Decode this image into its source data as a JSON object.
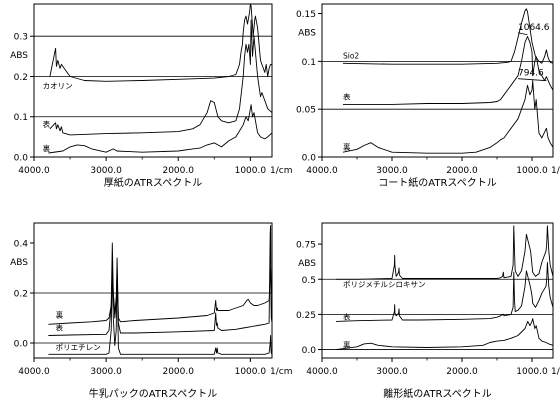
{
  "chart_data": [
    {
      "type": "line",
      "title": "厚紙のATRスペクトル",
      "ylabel": "ABS",
      "xlabel": "",
      "x_unit": "1/cm",
      "x_reversed": true,
      "xlim": [
        4000,
        700
      ],
      "ylim": [
        0,
        0.38
      ],
      "x_ticks": [
        4000,
        3000,
        2000,
        1000
      ],
      "x_tick_labels": [
        "4000.0",
        "3000.0",
        "2000.0",
        "1000.0"
      ],
      "y_ticks": [
        0,
        0.1,
        0.2,
        0.3
      ],
      "y_tick_labels": [
        "0.0",
        "0.1",
        "0.2",
        "0.3"
      ],
      "y_gridlines": [
        0,
        0.1,
        0.2,
        0.3
      ],
      "grid": "horizontal",
      "annotations": [
        {
          "text": "カオリン",
          "x": 3880,
          "y": 0.165
        },
        {
          "text": "表",
          "x": 3880,
          "y": 0.07
        },
        {
          "text": "裏",
          "x": 3880,
          "y": 0.01
        }
      ],
      "series": [
        {
          "label": "カオリン",
          "x": [
            3780,
            3700,
            3690,
            3670,
            3640,
            3620,
            3600,
            3500,
            3300,
            3000,
            2500,
            2000,
            1500,
            1300,
            1200,
            1150,
            1130,
            1110,
            1100,
            1080,
            1060,
            1040,
            1030,
            1010,
            1000,
            990,
            960,
            940,
            930,
            910,
            900,
            860,
            840,
            800,
            780,
            760,
            740,
            720,
            700
          ],
          "y": [
            0.2,
            0.27,
            0.225,
            0.24,
            0.22,
            0.23,
            0.225,
            0.2,
            0.19,
            0.188,
            0.19,
            0.193,
            0.196,
            0.2,
            0.205,
            0.23,
            0.26,
            0.28,
            0.31,
            0.34,
            0.35,
            0.33,
            0.34,
            0.36,
            0.38,
            0.375,
            0.3,
            0.34,
            0.35,
            0.33,
            0.32,
            0.24,
            0.23,
            0.21,
            0.23,
            0.2,
            0.22,
            0.23,
            0.23
          ]
        },
        {
          "label": "表",
          "x": [
            3780,
            3700,
            3690,
            3670,
            3640,
            3620,
            3600,
            3500,
            3000,
            2500,
            2000,
            1800,
            1700,
            1600,
            1550,
            1500,
            1450,
            1400,
            1300,
            1200,
            1150,
            1100,
            1080,
            1060,
            1040,
            1020,
            1000,
            990,
            970,
            950,
            900,
            860,
            840,
            800,
            760,
            700
          ],
          "y": [
            0.07,
            0.085,
            0.07,
            0.08,
            0.065,
            0.075,
            0.06,
            0.055,
            0.058,
            0.06,
            0.063,
            0.07,
            0.08,
            0.11,
            0.14,
            0.135,
            0.1,
            0.09,
            0.085,
            0.09,
            0.12,
            0.2,
            0.25,
            0.28,
            0.26,
            0.28,
            0.23,
            0.34,
            0.25,
            0.3,
            0.2,
            0.15,
            0.16,
            0.14,
            0.12,
            0.11
          ]
        },
        {
          "label": "裏",
          "x": [
            3800,
            3600,
            3500,
            3400,
            3300,
            3200,
            3000,
            2900,
            2850,
            2500,
            2000,
            1800,
            1700,
            1600,
            1500,
            1450,
            1400,
            1300,
            1200,
            1100,
            1060,
            1030,
            1000,
            990,
            970,
            950,
            900,
            860,
            800,
            760,
            700
          ],
          "y": [
            0.01,
            0.015,
            0.025,
            0.03,
            0.028,
            0.02,
            0.012,
            0.02,
            0.015,
            0.012,
            0.015,
            0.02,
            0.022,
            0.03,
            0.035,
            0.03,
            0.025,
            0.04,
            0.05,
            0.08,
            0.1,
            0.09,
            0.12,
            0.13,
            0.1,
            0.11,
            0.06,
            0.05,
            0.045,
            0.05,
            0.06
          ]
        }
      ]
    },
    {
      "type": "line",
      "title": "コート紙のATRスペクトル",
      "ylabel": "ABS",
      "xlabel": "",
      "x_unit": "1/cm",
      "x_reversed": true,
      "xlim": [
        4000,
        700
      ],
      "ylim": [
        0,
        0.16
      ],
      "x_ticks": [
        4000,
        3000,
        2000,
        1000
      ],
      "x_tick_labels": [
        "4000.0",
        "3000.0",
        "2000.0",
        "1000.0"
      ],
      "y_ticks": [
        0,
        0.05,
        0.1,
        0.15
      ],
      "y_tick_labels": [
        "0.0",
        "0.05",
        "0.1",
        "0.15"
      ],
      "y_gridlines": [
        0,
        0.05,
        0.1
      ],
      "grid": "horizontal",
      "annotations": [
        {
          "text": "Sio2",
          "x": 3700,
          "y": 0.101
        },
        {
          "text": "表",
          "x": 3700,
          "y": 0.058
        },
        {
          "text": "裏",
          "x": 3700,
          "y": 0.006
        },
        {
          "text": "1064.6",
          "x": 1064.6,
          "y": 0.132
        },
        {
          "text": "794.6",
          "x": 794.6,
          "y": 0.084
        }
      ],
      "series": [
        {
          "label": "Sio2",
          "x": [
            3700,
            3000,
            2500,
            2000,
            1500,
            1350,
            1300,
            1250,
            1200,
            1150,
            1100,
            1080,
            1064.6,
            1040,
            1000,
            950,
            900,
            860,
            820,
            794.6,
            770,
            740,
            700
          ],
          "y": [
            0.098,
            0.097,
            0.097,
            0.097,
            0.098,
            0.099,
            0.1,
            0.11,
            0.125,
            0.14,
            0.153,
            0.155,
            0.152,
            0.14,
            0.12,
            0.105,
            0.1,
            0.098,
            0.105,
            0.112,
            0.104,
            0.099,
            0.098
          ]
        },
        {
          "label": "表",
          "x": [
            3700,
            3000,
            2500,
            2000,
            1600,
            1500,
            1450,
            1400,
            1300,
            1200,
            1150,
            1100,
            1064.6,
            1030,
            1000,
            990,
            960,
            940,
            900,
            860,
            820,
            794.6,
            770,
            740,
            700
          ],
          "y": [
            0.055,
            0.055,
            0.056,
            0.056,
            0.057,
            0.058,
            0.06,
            0.065,
            0.075,
            0.085,
            0.1,
            0.12,
            0.126,
            0.12,
            0.11,
            0.085,
            0.1,
            0.105,
            0.09,
            0.085,
            0.08,
            0.084,
            0.08,
            0.075,
            0.07
          ]
        },
        {
          "label": "裏",
          "x": [
            3700,
            3500,
            3400,
            3300,
            3200,
            3000,
            2500,
            2000,
            1800,
            1600,
            1500,
            1450,
            1400,
            1300,
            1200,
            1100,
            1064.6,
            1030,
            1000,
            990,
            960,
            940,
            900,
            860,
            794.6,
            770,
            740,
            700
          ],
          "y": [
            0.005,
            0.008,
            0.012,
            0.015,
            0.01,
            0.005,
            0.004,
            0.004,
            0.005,
            0.01,
            0.015,
            0.018,
            0.02,
            0.03,
            0.04,
            0.06,
            0.075,
            0.065,
            0.07,
            0.08,
            0.05,
            0.06,
            0.025,
            0.02,
            0.03,
            0.02,
            0.015,
            0.01
          ]
        }
      ]
    },
    {
      "type": "line",
      "title": "牛乳パックのATRスペクトル",
      "ylabel": "ABS",
      "xlabel": "",
      "x_unit": "1/cm",
      "x_reversed": true,
      "xlim": [
        4000,
        700
      ],
      "ylim": [
        -0.06,
        0.48
      ],
      "x_ticks": [
        4000,
        3000,
        2000,
        1000
      ],
      "x_tick_labels": [
        "4000.0",
        "3000.0",
        "2000.0",
        "1000.0"
      ],
      "y_ticks": [
        0,
        0.2,
        0.4
      ],
      "y_tick_labels": [
        "0.0",
        "0.2",
        "0.4"
      ],
      "y_gridlines": [
        0,
        0.2
      ],
      "grid": "horizontal",
      "annotations": [
        {
          "text": "裏",
          "x": 3700,
          "y": 0.095
        },
        {
          "text": "表",
          "x": 3700,
          "y": 0.043
        },
        {
          "text": "ポリエチレン",
          "x": 3700,
          "y": -0.035
        }
      ],
      "series": [
        {
          "label": "裏",
          "x": [
            3800,
            3500,
            3200,
            3000,
            2960,
            2930,
            2915,
            2900,
            2880,
            2860,
            2848,
            2830,
            2800,
            2600,
            2000,
            1600,
            1500,
            1480,
            1470,
            1460,
            1450,
            1400,
            1300,
            1200,
            1100,
            1050,
            1030,
            1000,
            950,
            900,
            800,
            740,
            720,
            710,
            700
          ],
          "y": [
            0.075,
            0.08,
            0.085,
            0.09,
            0.1,
            0.15,
            0.3,
            0.2,
            0.12,
            0.18,
            0.28,
            0.1,
            0.085,
            0.09,
            0.1,
            0.11,
            0.12,
            0.17,
            0.13,
            0.14,
            0.13,
            0.13,
            0.13,
            0.14,
            0.15,
            0.17,
            0.175,
            0.16,
            0.15,
            0.15,
            0.16,
            0.17,
            0.3,
            0.21,
            0.19
          ]
        },
        {
          "label": "表",
          "x": [
            3800,
            3500,
            3000,
            2960,
            2930,
            2915,
            2900,
            2880,
            2860,
            2848,
            2830,
            2800,
            2600,
            2000,
            1500,
            1480,
            1470,
            1460,
            1450,
            1400,
            1200,
            1100,
            1000,
            900,
            800,
            740,
            725,
            720,
            715,
            710,
            700
          ],
          "y": [
            0.03,
            0.032,
            0.035,
            0.05,
            0.15,
            0.4,
            0.2,
            0.1,
            0.16,
            0.34,
            0.08,
            0.04,
            0.04,
            0.045,
            0.05,
            0.12,
            0.07,
            0.08,
            0.06,
            0.05,
            0.055,
            0.06,
            0.065,
            0.07,
            0.075,
            0.08,
            0.44,
            0.47,
            0.2,
            0.1,
            0.08
          ]
        },
        {
          "label": "ポリエチレン",
          "x": [
            3800,
            3500,
            3000,
            2960,
            2930,
            2915,
            2900,
            2880,
            2860,
            2848,
            2830,
            2800,
            2600,
            2000,
            1500,
            1480,
            1470,
            1460,
            1450,
            1400,
            1200,
            1000,
            800,
            740,
            725,
            720,
            715,
            710,
            700
          ],
          "y": [
            -0.045,
            -0.045,
            -0.045,
            -0.04,
            0.05,
            0.3,
            0.1,
            -0.01,
            0.05,
            0.28,
            -0.02,
            -0.045,
            -0.045,
            -0.045,
            -0.045,
            -0.02,
            -0.04,
            -0.02,
            -0.04,
            -0.045,
            -0.045,
            -0.045,
            -0.045,
            -0.04,
            0.0,
            0.03,
            -0.02,
            -0.04,
            -0.045
          ]
        }
      ]
    },
    {
      "type": "line",
      "title": "離形紙のATRスペクトル",
      "ylabel": "ABS",
      "xlabel": "",
      "x_unit": "1/cm",
      "x_reversed": true,
      "xlim": [
        4000,
        700
      ],
      "ylim": [
        -0.06,
        0.9
      ],
      "x_ticks": [
        4000,
        3000,
        2000,
        1000
      ],
      "x_tick_labels": [
        "4000.0",
        "3000.0",
        "2000.0",
        "1000.0"
      ],
      "y_ticks": [
        0,
        0.25,
        0.5,
        0.75
      ],
      "y_tick_labels": [
        "0.0",
        "0.25",
        "0.5",
        "0.75"
      ],
      "y_gridlines": [
        0,
        0.25,
        0.5
      ],
      "grid": "horizontal",
      "annotations": [
        {
          "text": "ポリジメチルシロキサン",
          "x": 3700,
          "y": 0.43
        },
        {
          "text": "表",
          "x": 3700,
          "y": 0.2
        },
        {
          "text": "裏",
          "x": 3700,
          "y": 0.0
        }
      ],
      "series": [
        {
          "label": "ポリジメチルシロキサン",
          "x": [
            3800,
            3500,
            3000,
            2965,
            2962,
            2958,
            2940,
            2905,
            2900,
            2895,
            2850,
            2600,
            2000,
            1500,
            1450,
            1420,
            1410,
            1400,
            1300,
            1270,
            1260,
            1250,
            1240,
            1200,
            1150,
            1100,
            1080,
            1020,
            1000,
            990,
            950,
            900,
            860,
            800,
            790,
            780,
            760,
            740,
            700
          ],
          "y": [
            0.5,
            0.5,
            0.505,
            0.6,
            0.67,
            0.6,
            0.52,
            0.55,
            0.58,
            0.53,
            0.505,
            0.505,
            0.505,
            0.505,
            0.51,
            0.52,
            0.55,
            0.51,
            0.52,
            0.6,
            0.88,
            0.7,
            0.56,
            0.52,
            0.56,
            0.7,
            0.82,
            0.7,
            0.6,
            0.55,
            0.52,
            0.54,
            0.62,
            0.7,
            0.75,
            0.88,
            0.7,
            0.6,
            0.52
          ]
        },
        {
          "label": "表",
          "x": [
            3800,
            3500,
            3000,
            2965,
            2962,
            2958,
            2940,
            2905,
            2900,
            2895,
            2850,
            2600,
            2000,
            1600,
            1500,
            1450,
            1410,
            1400,
            1300,
            1270,
            1260,
            1250,
            1240,
            1200,
            1150,
            1100,
            1080,
            1020,
            1000,
            990,
            950,
            900,
            860,
            800,
            790,
            780,
            760,
            740,
            700
          ],
          "y": [
            0.2,
            0.205,
            0.21,
            0.27,
            0.32,
            0.26,
            0.24,
            0.26,
            0.29,
            0.24,
            0.21,
            0.21,
            0.215,
            0.22,
            0.23,
            0.24,
            0.25,
            0.24,
            0.25,
            0.3,
            0.55,
            0.35,
            0.27,
            0.28,
            0.31,
            0.45,
            0.56,
            0.44,
            0.38,
            0.33,
            0.3,
            0.35,
            0.4,
            0.45,
            0.5,
            0.62,
            0.45,
            0.37,
            0.3
          ]
        },
        {
          "label": "裏",
          "x": [
            3800,
            3500,
            3400,
            3300,
            3200,
            3000,
            2500,
            2000,
            1700,
            1600,
            1500,
            1400,
            1300,
            1200,
            1100,
            1060,
            1030,
            1000,
            990,
            960,
            940,
            900,
            860,
            800,
            760,
            700
          ],
          "y": [
            0.0,
            0.02,
            0.04,
            0.045,
            0.03,
            0.02,
            0.015,
            0.02,
            0.03,
            0.05,
            0.06,
            0.065,
            0.08,
            0.1,
            0.15,
            0.2,
            0.17,
            0.2,
            0.22,
            0.15,
            0.17,
            0.08,
            0.06,
            0.05,
            0.04,
            0.03
          ]
        }
      ]
    }
  ]
}
